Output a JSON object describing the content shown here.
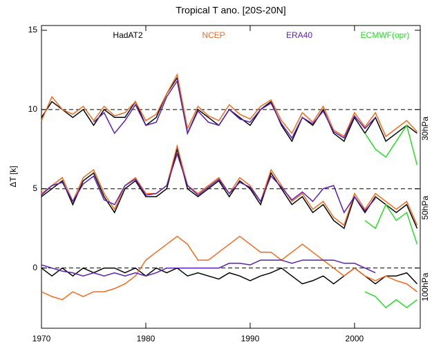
{
  "chart_data": {
    "type": "line",
    "title": "Tropical T ano. [20S-20N]",
    "y_label": "ΔT [k]",
    "x": [
      1970,
      1971,
      1972,
      1973,
      1974,
      1975,
      1976,
      1977,
      1978,
      1979,
      1980,
      1981,
      1982,
      1983,
      1984,
      1985,
      1986,
      1987,
      1988,
      1989,
      1990,
      1991,
      1992,
      1993,
      1994,
      1995,
      1996,
      1997,
      1998,
      1999,
      2000,
      2001,
      2002,
      2003,
      2004,
      2005,
      2006
    ],
    "xlim": [
      1970,
      2006.3
    ],
    "xticks": [
      1970,
      1980,
      1990,
      2000
    ],
    "ylim": [
      -3.8,
      15.3
    ],
    "yticks": [
      0,
      5,
      10,
      15
    ],
    "levels": [
      "30hPa",
      "50hPa",
      "100hPa"
    ],
    "reference_lines": [
      10,
      5,
      0
    ],
    "series": [
      {
        "name": "HadAT2",
        "color": "#000000",
        "levels": [
          [
            9.5,
            10.5,
            10,
            9.5,
            10,
            9,
            10,
            9.5,
            9.5,
            10.5,
            9,
            9.5,
            11,
            12,
            8.5,
            10,
            9.5,
            9,
            10,
            9.5,
            9,
            10,
            10.5,
            9,
            8,
            9.5,
            9,
            10,
            8.5,
            8,
            9.5,
            8.5,
            9.5,
            8,
            8.5,
            9,
            8.5
          ],
          [
            4.5,
            5,
            5.5,
            4,
            5.5,
            6,
            4.5,
            3.5,
            5,
            5.5,
            4.5,
            4.5,
            5,
            7.5,
            5,
            4.5,
            5,
            5.5,
            4.5,
            5.5,
            5,
            4,
            6,
            5,
            4,
            4.5,
            3.5,
            4,
            3,
            2.5,
            4.5,
            3.5,
            4.5,
            4,
            3.5,
            4,
            2.5
          ],
          [
            0,
            -0.5,
            0,
            -0.5,
            0,
            -0.3,
            0,
            0,
            -0.3,
            0,
            -0.5,
            0,
            -0.3,
            0,
            -0.5,
            -0.3,
            -0.5,
            -0.7,
            -0.3,
            -0.5,
            -0.8,
            -0.5,
            -0.3,
            0,
            -0.5,
            -1,
            -0.8,
            -0.5,
            -1,
            -0.5,
            0,
            -0.5,
            -1,
            -0.5,
            -0.5,
            -0.3,
            -1
          ]
        ]
      },
      {
        "name": "NCEP",
        "color": "#f26a1b",
        "levels": [
          [
            9.3,
            10.8,
            10,
            9.7,
            10.2,
            9.3,
            10.2,
            9.6,
            9.8,
            10.5,
            9.3,
            9.7,
            11,
            12.2,
            8.8,
            10.2,
            9.6,
            9.3,
            10.3,
            9.7,
            9.4,
            10.2,
            10.6,
            9.3,
            8.5,
            9.8,
            9.2,
            10.2,
            8.7,
            8.3,
            9.8,
            8.9,
            9.8,
            8.3,
            8.8,
            9.3,
            8.6
          ],
          [
            4.7,
            5.2,
            5.7,
            4.2,
            5.7,
            6.2,
            4.7,
            3.7,
            5.2,
            5.7,
            4.7,
            4.7,
            5.2,
            7.7,
            5.2,
            4.7,
            5.2,
            5.7,
            4.7,
            5.7,
            5.2,
            4.2,
            6.2,
            5.2,
            4.2,
            4.7,
            3.7,
            4.2,
            3.2,
            2.7,
            4.7,
            3.7,
            4.7,
            4.2,
            3.7,
            4.2,
            2.7
          ],
          [
            -1.5,
            -1.8,
            -2,
            -1.5,
            -1.8,
            -1.5,
            -1.5,
            -1.3,
            -1,
            -0.5,
            0.5,
            1,
            1.5,
            2,
            1.5,
            0.5,
            0.5,
            1,
            1.5,
            2,
            1.5,
            1,
            1,
            0.5,
            1,
            1.5,
            1,
            0.5,
            0,
            -0.5,
            0,
            -0.5,
            -0.8,
            -0.5,
            -0.8,
            -1,
            -1.5
          ]
        ]
      },
      {
        "name": "ERA40",
        "color": "#5a1fb4",
        "levels": [
          [
            null,
            null,
            null,
            null,
            null,
            9.2,
            9.8,
            8.5,
            9.3,
            10.3,
            9,
            9.2,
            10.8,
            11.8,
            8.5,
            9.9,
            9.2,
            9,
            10,
            9.4,
            9.2,
            10,
            10.4,
            9.1,
            8.2,
            9.5,
            9.1,
            9.9,
            8.6,
            8.2,
            9.6,
            8.8,
            9.5,
            null,
            null,
            null,
            null
          ],
          [
            4.6,
            5.2,
            5.4,
            4.2,
            5.3,
            5.8,
            4.3,
            4,
            5.2,
            5.6,
            4.6,
            4.7,
            5.2,
            7.2,
            5.2,
            4.6,
            5.1,
            5.6,
            4.7,
            5.4,
            5.1,
            4.2,
            5.8,
            5.1,
            4.3,
            4.8,
            4.2,
            5,
            5.2,
            3.5,
            4.5,
            3.6,
            4.4,
            null,
            null,
            null,
            null
          ],
          [
            0.2,
            0,
            -0.2,
            -0.3,
            -0.5,
            -0.3,
            -0.5,
            -0.3,
            -0.5,
            -0.3,
            -0.5,
            -0.3,
            0,
            0,
            0,
            0,
            0,
            0,
            0.3,
            0.3,
            0.2,
            0.5,
            0.5,
            0.5,
            0.3,
            0.5,
            0.5,
            0.5,
            0.5,
            0.3,
            0.3,
            0,
            -0.3,
            null,
            null,
            null,
            null
          ]
        ]
      },
      {
        "name": "ECMWF(opr)",
        "color": "#22dd22",
        "levels": [
          [
            null,
            null,
            null,
            null,
            null,
            null,
            null,
            null,
            null,
            null,
            null,
            null,
            null,
            null,
            null,
            null,
            null,
            null,
            null,
            null,
            null,
            null,
            null,
            null,
            null,
            null,
            null,
            null,
            null,
            null,
            null,
            8.5,
            7.5,
            7,
            8,
            9,
            6.5
          ],
          [
            null,
            null,
            null,
            null,
            null,
            null,
            null,
            null,
            null,
            null,
            null,
            null,
            null,
            null,
            null,
            null,
            null,
            null,
            null,
            null,
            null,
            null,
            null,
            null,
            null,
            null,
            null,
            null,
            null,
            null,
            null,
            3,
            2.5,
            4,
            3,
            3.5,
            1.5
          ],
          [
            null,
            null,
            null,
            null,
            null,
            null,
            null,
            null,
            null,
            null,
            null,
            null,
            null,
            null,
            null,
            null,
            null,
            null,
            null,
            null,
            null,
            null,
            null,
            null,
            null,
            null,
            null,
            null,
            null,
            null,
            null,
            -1.5,
            -1.8,
            -2.5,
            -2,
            -2.5,
            -2
          ]
        ]
      }
    ]
  }
}
